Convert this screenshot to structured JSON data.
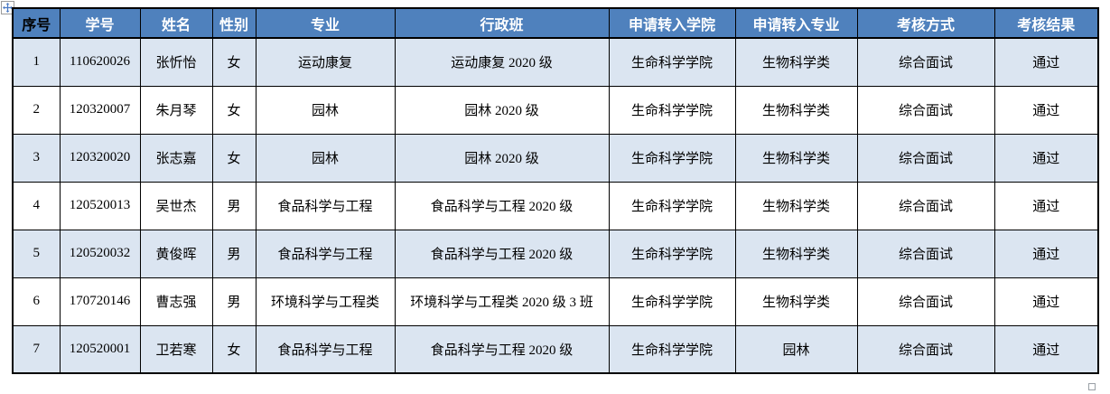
{
  "icons": {
    "move_handle": "four-way-move-arrow-icon",
    "resize_handle": "resize-square-icon"
  },
  "colors": {
    "header_bg": "#4f81bd",
    "header_text": "#ffffff",
    "header_text_first": "#000000",
    "band_bg": "#dbe5f1",
    "row_bg": "#ffffff",
    "border": "#000000"
  },
  "table": {
    "columns": [
      "序号",
      "学号",
      "姓名",
      "性别",
      "专业",
      "行政班",
      "申请转入学院",
      "申请转入专业",
      "考核方式",
      "考核结果"
    ],
    "rows": [
      [
        "1",
        "110620026",
        "张忻怡",
        "女",
        "运动康复",
        "运动康复 2020 级",
        "生命科学学院",
        "生物科学类",
        "综合面试",
        "通过"
      ],
      [
        "2",
        "120320007",
        "朱月琴",
        "女",
        "园林",
        "园林 2020 级",
        "生命科学学院",
        "生物科学类",
        "综合面试",
        "通过"
      ],
      [
        "3",
        "120320020",
        "张志嘉",
        "女",
        "园林",
        "园林 2020 级",
        "生命科学学院",
        "生物科学类",
        "综合面试",
        "通过"
      ],
      [
        "4",
        "120520013",
        "吴世杰",
        "男",
        "食品科学与工程",
        "食品科学与工程 2020 级",
        "生命科学学院",
        "生物科学类",
        "综合面试",
        "通过"
      ],
      [
        "5",
        "120520032",
        "黄俊晖",
        "男",
        "食品科学与工程",
        "食品科学与工程 2020 级",
        "生命科学学院",
        "生物科学类",
        "综合面试",
        "通过"
      ],
      [
        "6",
        "170720146",
        "曹志强",
        "男",
        "环境科学与工程类",
        "环境科学与工程类 2020 级 3 班",
        "生命科学学院",
        "生物科学类",
        "综合面试",
        "通过"
      ],
      [
        "7",
        "120520001",
        "卫若寒",
        "女",
        "食品科学与工程",
        "食品科学与工程 2020 级",
        "生命科学学院",
        "园林",
        "综合面试",
        "通过"
      ]
    ]
  }
}
